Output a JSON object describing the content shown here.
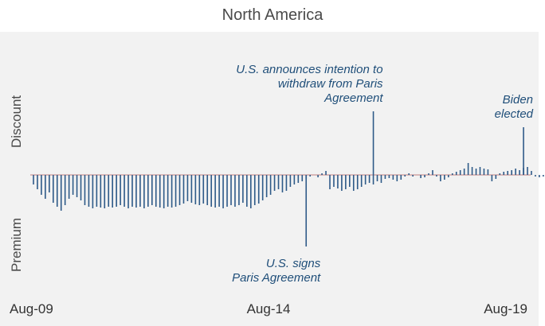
{
  "title": "North America",
  "chart_data": {
    "type": "bar",
    "title": "North America",
    "y_top_label": "Discount",
    "y_bottom_label": "Premium",
    "x_tick_labels": [
      "Aug-09",
      "Aug-14",
      "Aug-19"
    ],
    "x_ticks": [
      0,
      60,
      120
    ],
    "x_range": [
      0,
      125
    ],
    "y_range": [
      -1,
      1
    ],
    "bar_color": "#2e5a88",
    "baseline_color": "#d9b8b8",
    "values": [
      -0.12,
      -0.18,
      -0.25,
      -0.3,
      -0.22,
      -0.35,
      -0.4,
      -0.45,
      -0.38,
      -0.3,
      -0.25,
      -0.28,
      -0.32,
      -0.38,
      -0.4,
      -0.42,
      -0.4,
      -0.41,
      -0.42,
      -0.4,
      -0.41,
      -0.4,
      -0.38,
      -0.4,
      -0.42,
      -0.4,
      -0.41,
      -0.4,
      -0.42,
      -0.4,
      -0.38,
      -0.4,
      -0.41,
      -0.42,
      -0.4,
      -0.41,
      -0.4,
      -0.38,
      -0.36,
      -0.33,
      -0.35,
      -0.37,
      -0.38,
      -0.36,
      -0.38,
      -0.4,
      -0.41,
      -0.4,
      -0.42,
      -0.4,
      -0.38,
      -0.4,
      -0.38,
      -0.35,
      -0.4,
      -0.42,
      -0.38,
      -0.36,
      -0.32,
      -0.28,
      -0.25,
      -0.2,
      -0.18,
      -0.22,
      -0.2,
      -0.15,
      -0.12,
      -0.1,
      -0.08,
      -0.05,
      -0.02,
      0.0,
      -0.03,
      0.02,
      0.05,
      -0.18,
      -0.15,
      -0.17,
      -0.2,
      -0.18,
      -0.15,
      -0.2,
      -0.18,
      -0.15,
      -0.12,
      -0.1,
      -0.12,
      -0.08,
      -0.1,
      -0.05,
      -0.04,
      -0.06,
      -0.08,
      -0.06,
      -0.02,
      0.02,
      -0.02,
      0.0,
      -0.04,
      -0.03,
      0.02,
      0.06,
      -0.02,
      -0.08,
      -0.06,
      -0.03,
      0.02,
      0.04,
      0.06,
      0.08,
      0.15,
      0.1,
      0.08,
      0.1,
      0.08,
      0.07,
      -0.08,
      -0.05,
      0.02,
      0.04,
      0.05,
      0.06,
      0.08,
      0.06,
      0.09,
      0.1,
      0.05,
      -0.02,
      -0.03,
      -0.02,
      -0.05,
      -0.08,
      -0.14,
      -0.18,
      -0.16
    ],
    "annotations": [
      {
        "index": 69,
        "value": -0.9,
        "lines": [
          "U.S. signs",
          "Paris Agreement"
        ],
        "position": "below"
      },
      {
        "index": 86,
        "value": 0.8,
        "lines": [
          "U.S. announces intention to",
          "withdraw from Paris",
          "Agreement"
        ],
        "position": "above"
      },
      {
        "index": 124,
        "value": 0.6,
        "lines": [
          "Biden",
          "elected"
        ],
        "position": "above"
      }
    ]
  }
}
